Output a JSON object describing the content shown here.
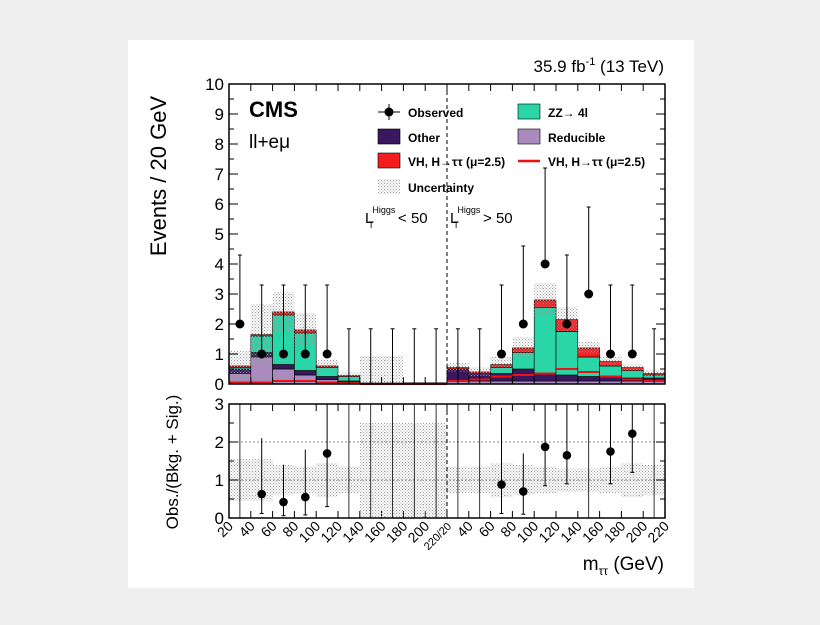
{
  "chart_data": [
    {
      "type": "bar",
      "label_top": "35.9 fb",
      "label_top_sup": "-1",
      "label_top_energy": " (13 TeV)",
      "experiment": "CMS",
      "channel": "ll+eμ",
      "ylabel": "Events / 20 GeV",
      "ylim": [
        0,
        10
      ],
      "yticks": [
        "0",
        "1",
        "2",
        "3",
        "4",
        "5",
        "6",
        "7",
        "8",
        "9",
        "10"
      ],
      "region_left": {
        "main": "L",
        "sub": "T",
        "sup": "Higgs",
        "cut": " < 50"
      },
      "region_right": {
        "main": "L",
        "sub": "T",
        "sup": "Higgs",
        "cut": " > 50"
      },
      "legend": [
        {
          "label": "Observed",
          "kind": "marker"
        },
        {
          "label": "ZZ→ 4l",
          "kind": "box",
          "color": "#2ad6a8"
        },
        {
          "label": "Other",
          "kind": "box",
          "color": "#3a1860"
        },
        {
          "label": "Reducible",
          "kind": "box",
          "color": "#a98bbd"
        },
        {
          "label": "VH, H→ττ (μ=2.5)",
          "kind": "box",
          "color": "#f41c1c"
        },
        {
          "label": "VH, H→ττ (μ=2.5)",
          "kind": "line",
          "color": "#ee1111"
        },
        {
          "label": "Uncertainty",
          "kind": "hatch"
        }
      ],
      "bins_left": [
        [
          20,
          40
        ],
        [
          40,
          60
        ],
        [
          60,
          80
        ],
        [
          80,
          100
        ],
        [
          100,
          120
        ],
        [
          120,
          140
        ],
        [
          140,
          160
        ],
        [
          160,
          180
        ],
        [
          180,
          200
        ],
        [
          200,
          220
        ]
      ],
      "bins_right": [
        [
          20,
          40
        ],
        [
          40,
          60
        ],
        [
          60,
          80
        ],
        [
          80,
          100
        ],
        [
          100,
          120
        ],
        [
          120,
          140
        ],
        [
          140,
          160
        ],
        [
          160,
          180
        ],
        [
          180,
          200
        ],
        [
          200,
          220
        ]
      ],
      "series": [
        {
          "name": "Reducible",
          "color": "#a98bbd",
          "left": [
            0.35,
            0.9,
            0.5,
            0.3,
            0.15,
            0.05,
            0.02,
            0.02,
            0.02,
            0.02
          ],
          "right": [
            0.1,
            0.1,
            0.1,
            0.1,
            0.1,
            0.1,
            0.1,
            0.1,
            0.1,
            0.1
          ]
        },
        {
          "name": "Other",
          "color": "#3a1860",
          "left": [
            0.15,
            0.15,
            0.15,
            0.15,
            0.1,
            0.05,
            0.02,
            0.02,
            0.02,
            0.02
          ],
          "right": [
            0.4,
            0.25,
            0.25,
            0.4,
            0.25,
            0.2,
            0.15,
            0.15,
            0.1,
            0.1
          ]
        },
        {
          "name": "ZZ→ 4l",
          "color": "#2ad6a8",
          "left": [
            0.05,
            0.55,
            1.65,
            1.25,
            0.3,
            0.15,
            0.0,
            0.0,
            0.0,
            0.0
          ],
          "right": [
            0.0,
            0.0,
            0.2,
            0.55,
            2.2,
            1.45,
            0.65,
            0.35,
            0.25,
            0.1
          ]
        },
        {
          "name": "VH, H→ττ (μ=2.5)",
          "color": "#f41c1c",
          "left": [
            0.05,
            0.05,
            0.1,
            0.1,
            0.05,
            0.03,
            0.0,
            0.0,
            0.0,
            0.0
          ],
          "right": [
            0.05,
            0.05,
            0.1,
            0.15,
            0.25,
            0.4,
            0.3,
            0.15,
            0.1,
            0.05
          ]
        }
      ],
      "signal_line": {
        "left": [
          0.05,
          0.05,
          0.1,
          0.1,
          0.05,
          0.03,
          0.0,
          0.0,
          0.0,
          0.0
        ],
        "right": [
          0.1,
          0.15,
          0.25,
          0.3,
          0.35,
          0.5,
          0.4,
          0.25,
          0.15,
          0.1
        ]
      },
      "uncertainty": {
        "left": [
          0.5,
          1.0,
          0.65,
          0.55,
          0.2,
          0.1,
          0.9,
          0.9,
          0.0,
          0.0
        ],
        "right": [
          0.15,
          0.15,
          0.25,
          0.35,
          0.55,
          0.4,
          0.2,
          0.15,
          0.12,
          0.1
        ]
      },
      "observed": {
        "left": [
          {
            "x": 30,
            "y": 2,
            "hi": 4.3
          },
          {
            "x": 50,
            "y": 1,
            "hi": 3.3
          },
          {
            "x": 70,
            "y": 1,
            "hi": 3.3
          },
          {
            "x": 90,
            "y": 1,
            "hi": 3.3
          },
          {
            "x": 110,
            "y": 1,
            "hi": 3.3
          },
          {
            "x": 130,
            "y": 0,
            "hi": 1.84
          },
          {
            "x": 150,
            "y": 0,
            "hi": 1.84
          },
          {
            "x": 170,
            "y": 0,
            "hi": 1.84
          },
          {
            "x": 190,
            "y": 0,
            "hi": 1.84
          },
          {
            "x": 210,
            "y": 0,
            "hi": 1.84
          }
        ],
        "right": [
          {
            "x": 30,
            "y": 0,
            "hi": 1.84
          },
          {
            "x": 50,
            "y": 0,
            "hi": 1.84
          },
          {
            "x": 70,
            "y": 1,
            "hi": 3.3
          },
          {
            "x": 90,
            "y": 2,
            "hi": 4.6
          },
          {
            "x": 110,
            "y": 4,
            "hi": 7.2
          },
          {
            "x": 130,
            "y": 2,
            "hi": 4.3
          },
          {
            "x": 150,
            "y": 3,
            "hi": 5.9
          },
          {
            "x": 170,
            "y": 1,
            "hi": 3.3
          },
          {
            "x": 190,
            "y": 1,
            "hi": 3.3
          },
          {
            "x": 210,
            "y": 0,
            "hi": 1.84
          }
        ]
      }
    },
    {
      "type": "scatter",
      "ylabel": "Obs./(Bkg. + Sig.)",
      "xlabel": "m",
      "xlabel_sub": "ττ",
      "xlabel_unit": " (GeV)",
      "ylim": [
        0,
        3
      ],
      "yticks": [
        "0",
        "1",
        "2",
        "3"
      ],
      "xtick_labels_left": [
        "20",
        "40",
        "60",
        "80",
        "100",
        "120",
        "140",
        "160",
        "180",
        "200"
      ],
      "xtick_label_mid": "220/20",
      "xtick_labels_right": [
        "40",
        "60",
        "80",
        "100",
        "120",
        "140",
        "160",
        "180",
        "200",
        "220"
      ],
      "ratio_points": {
        "left": [
          {
            "x": 50,
            "y": 0.63,
            "lo": 0.12,
            "hi": 2.1
          },
          {
            "x": 70,
            "y": 0.42,
            "lo": 0.06,
            "hi": 1.4
          },
          {
            "x": 90,
            "y": 0.55,
            "lo": 0.08,
            "hi": 1.8
          },
          {
            "x": 110,
            "y": 1.7,
            "lo": 0.3,
            "hi": 3.0
          }
        ],
        "right": [
          {
            "x": 70,
            "y": 0.88,
            "lo": 0.12,
            "hi": 2.9
          },
          {
            "x": 90,
            "y": 0.7,
            "lo": 0.1,
            "hi": 1.7
          },
          {
            "x": 110,
            "y": 1.87,
            "lo": 0.85,
            "hi": 3.0
          },
          {
            "x": 130,
            "y": 1.65,
            "lo": 0.9,
            "hi": 3.0
          },
          {
            "x": 170,
            "y": 1.75,
            "lo": 0.9,
            "hi": 3.0
          },
          {
            "x": 190,
            "y": 2.22,
            "lo": 1.2,
            "hi": 3.0
          }
        ]
      },
      "ratio_uncertainty": {
        "left": [
          0.55,
          0.55,
          0.4,
          0.35,
          0.45,
          0.35,
          1.5,
          1.5,
          1.5,
          1.5
        ],
        "right": [
          0.35,
          0.35,
          0.45,
          0.4,
          0.35,
          0.3,
          0.3,
          0.35,
          0.45,
          0.4
        ]
      }
    }
  ]
}
